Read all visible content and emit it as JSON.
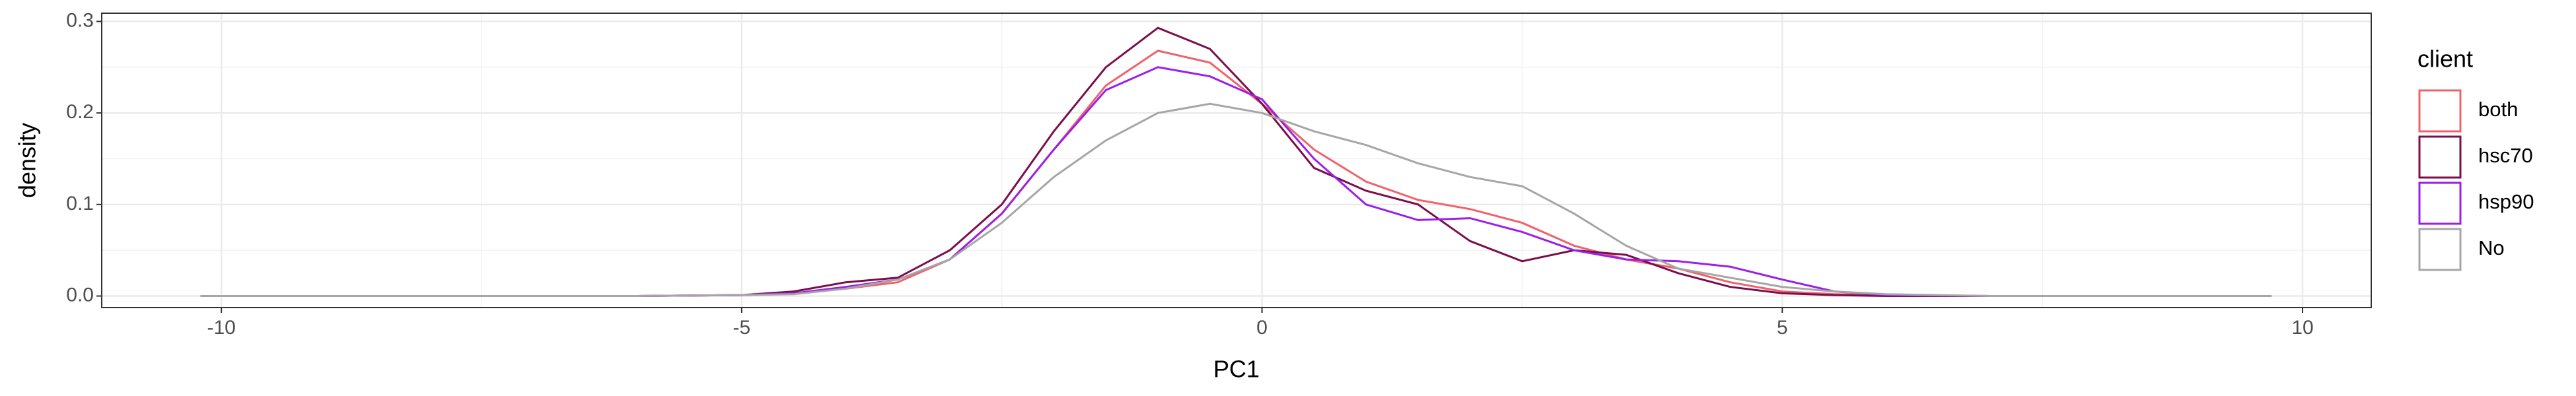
{
  "chart_data": {
    "type": "line",
    "x_label": "PC1",
    "y_label": "density",
    "legend_title": "client",
    "x": [
      -10.2,
      -6,
      -5,
      -4.5,
      -4,
      -3.5,
      -3,
      -2.5,
      -2,
      -1.5,
      -1,
      -0.5,
      0,
      0.5,
      1,
      1.5,
      2,
      2.5,
      3,
      3.5,
      4,
      4.5,
      5,
      5.5,
      6,
      7,
      8.4,
      9.7
    ],
    "series": [
      {
        "name": "both",
        "color": "#f0626a",
        "values": [
          0,
          0,
          0.001,
          0.003,
          0.008,
          0.015,
          0.04,
          0.09,
          0.16,
          0.23,
          0.268,
          0.255,
          0.21,
          0.16,
          0.125,
          0.105,
          0.095,
          0.08,
          0.055,
          0.04,
          0.03,
          0.015,
          0.005,
          0.002,
          0.001,
          0,
          0,
          0
        ]
      },
      {
        "name": "hsc70",
        "color": "#7b0e4a",
        "values": [
          0,
          0,
          0.001,
          0.005,
          0.015,
          0.02,
          0.05,
          0.1,
          0.18,
          0.25,
          0.293,
          0.27,
          0.21,
          0.14,
          0.115,
          0.1,
          0.06,
          0.038,
          0.05,
          0.045,
          0.025,
          0.01,
          0.003,
          0.001,
          0,
          0,
          0,
          0
        ]
      },
      {
        "name": "hsp90",
        "color": "#9b1fe8",
        "values": [
          0,
          0,
          0.001,
          0.003,
          0.01,
          0.018,
          0.04,
          0.09,
          0.16,
          0.225,
          0.25,
          0.24,
          0.215,
          0.15,
          0.1,
          0.083,
          0.085,
          0.07,
          0.05,
          0.04,
          0.038,
          0.032,
          0.018,
          0.005,
          0.001,
          0,
          0,
          0
        ]
      },
      {
        "name": "No",
        "color": "#a6a6a6",
        "values": [
          0,
          0,
          0.001,
          0.002,
          0.008,
          0.018,
          0.04,
          0.08,
          0.13,
          0.17,
          0.2,
          0.21,
          0.2,
          0.18,
          0.165,
          0.145,
          0.13,
          0.12,
          0.09,
          0.055,
          0.03,
          0.02,
          0.01,
          0.005,
          0.002,
          0,
          0,
          0
        ]
      }
    ],
    "xlim": [
      -11.15,
      10.66
    ],
    "xticks": [
      -10,
      -5,
      0,
      5,
      10
    ],
    "ylim": [
      -0.0126,
      0.309
    ],
    "yticks": [
      {
        "value": 0,
        "label": "0.0"
      },
      0.1,
      0.2,
      0.3
    ],
    "grid": true
  }
}
